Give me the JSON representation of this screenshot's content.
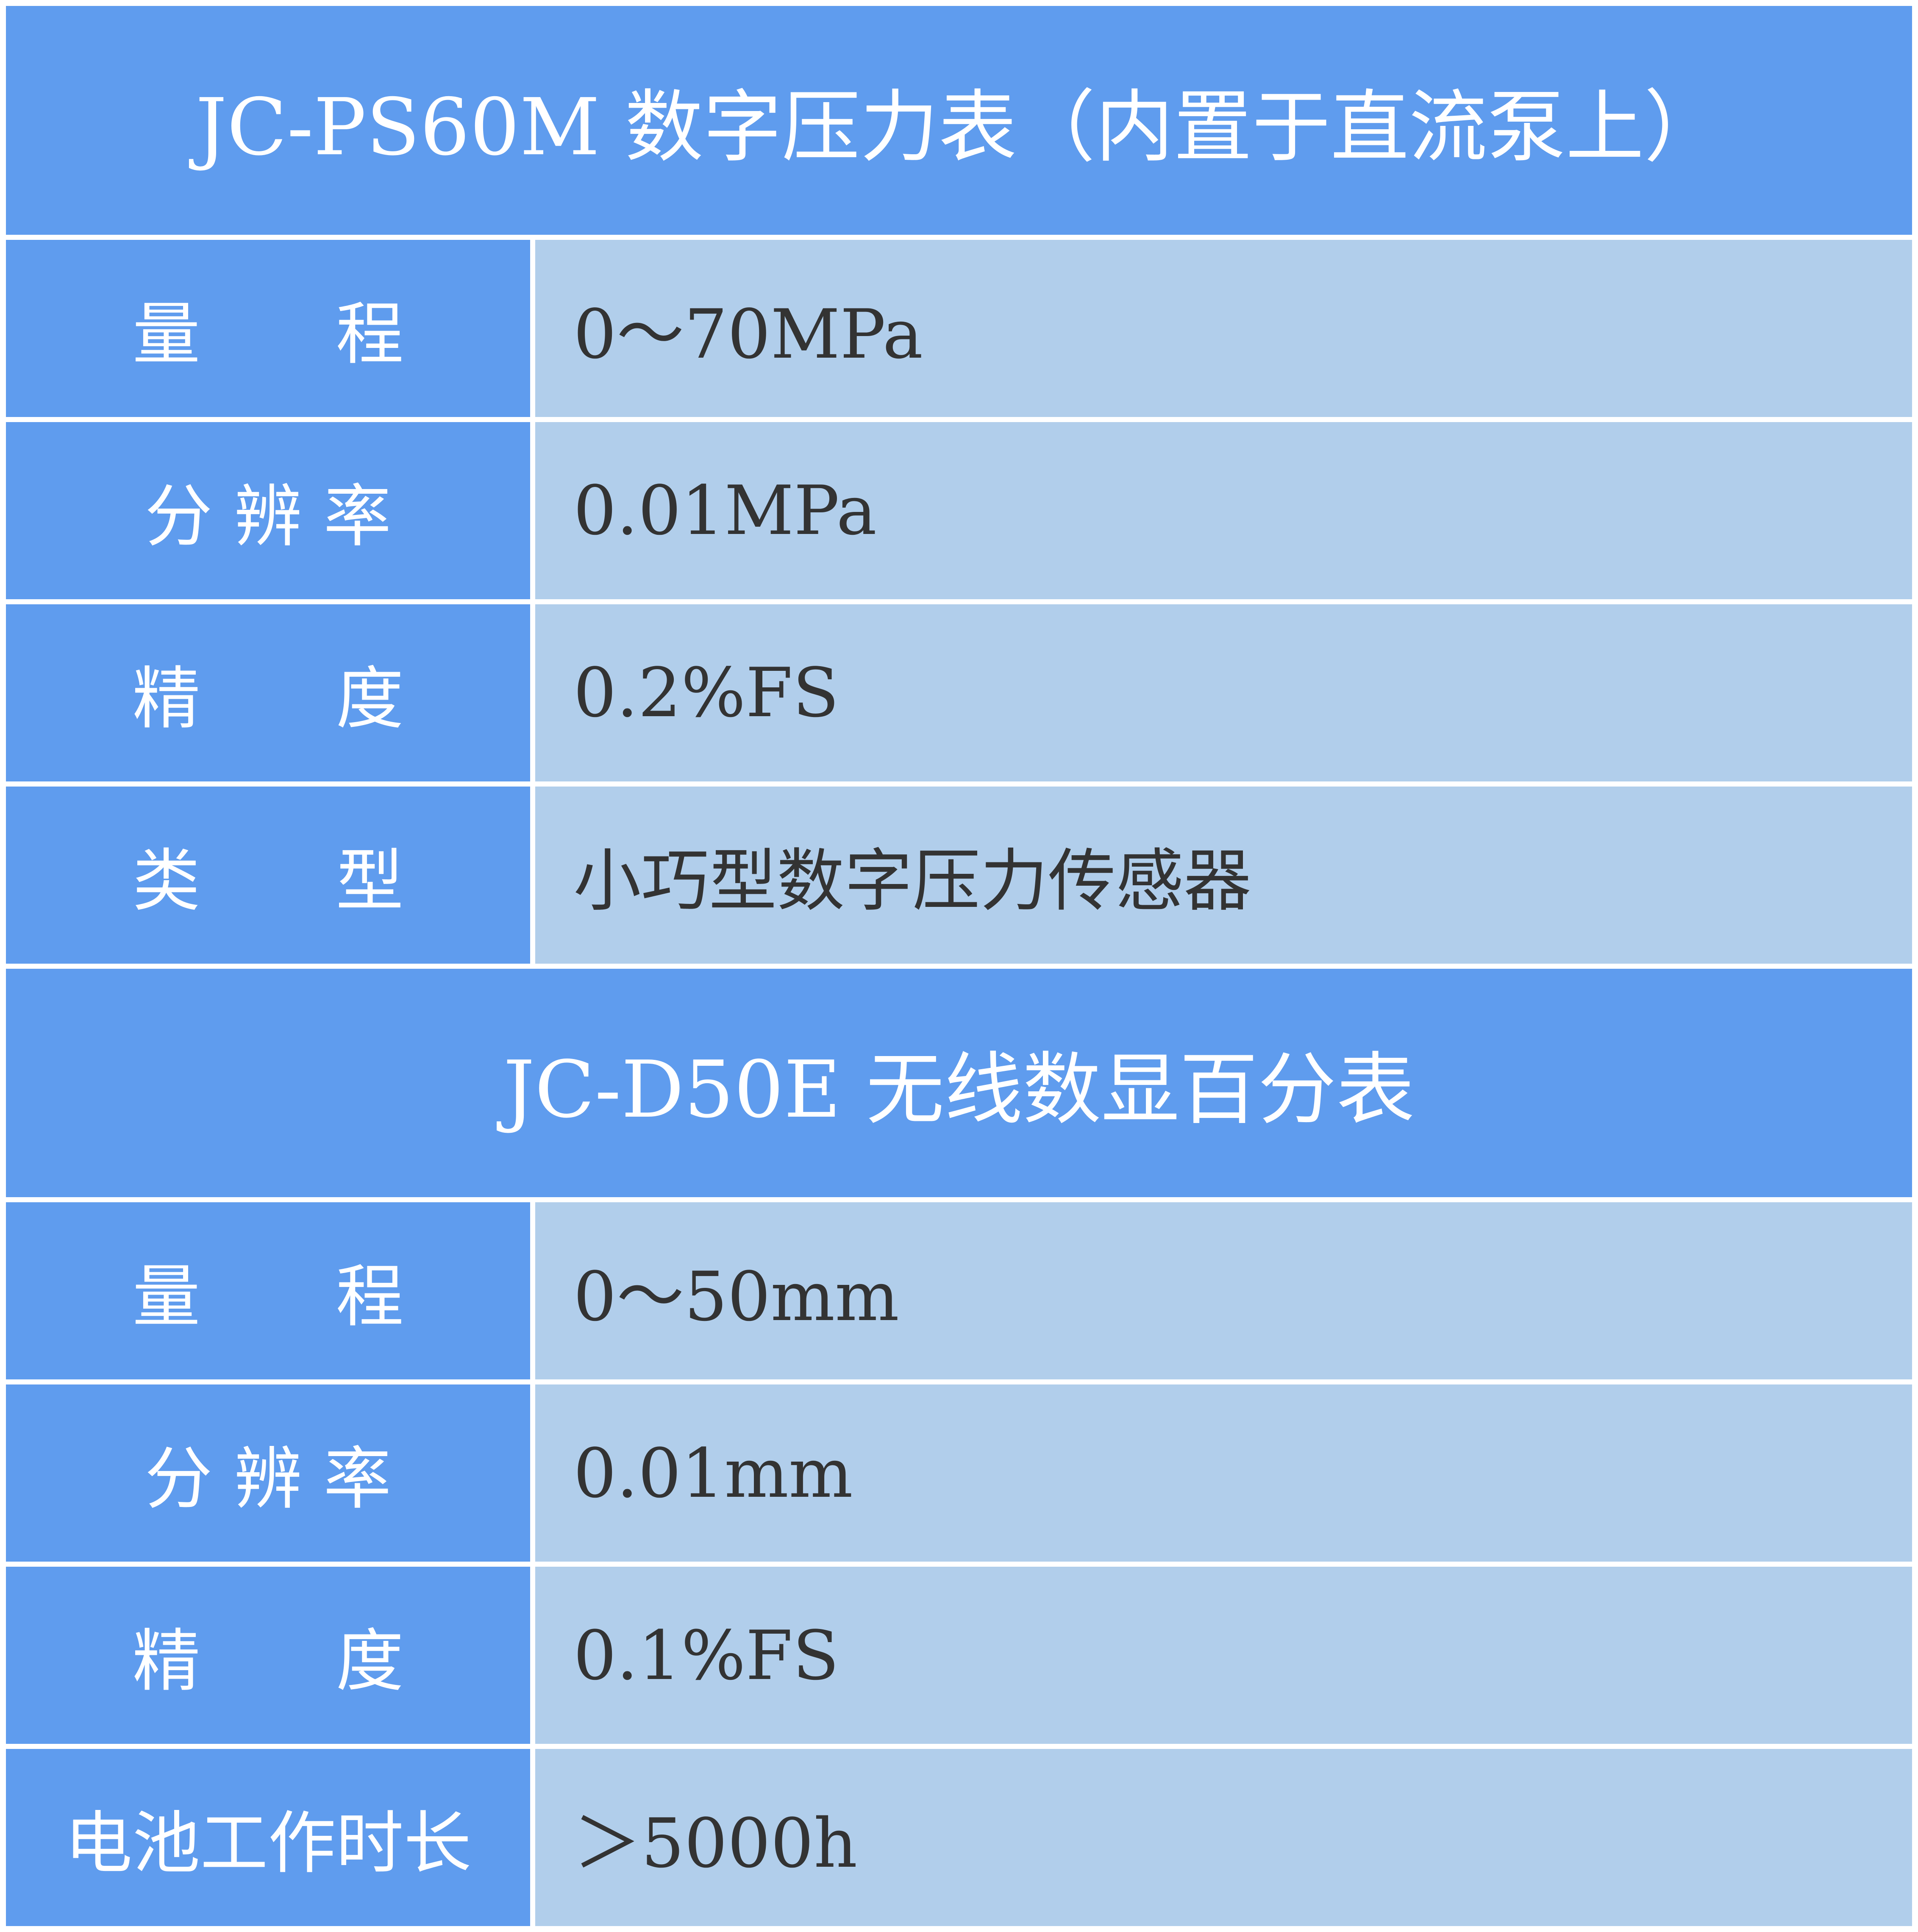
{
  "sections": [
    {
      "title": "JC-PS60M 数字压力表（内置于直流泵上）",
      "rows": [
        {
          "label": "量　　程",
          "value": "0～70MPa"
        },
        {
          "label": "分 辨 率",
          "value": "0.01MPa"
        },
        {
          "label": "精　　度",
          "value": "0.2%FS"
        },
        {
          "label": "类　　型",
          "value": "小巧型数字压力传感器"
        }
      ]
    },
    {
      "title": "JC-D50E 无线数显百分表",
      "rows": [
        {
          "label": "量　　程",
          "value": "0～50mm"
        },
        {
          "label": "分 辨 率",
          "value": "0.01mm"
        },
        {
          "label": "精　　度",
          "value": "0.1%FS"
        },
        {
          "label": "电池工作时长",
          "value": "＞5000h"
        }
      ]
    }
  ],
  "colors": {
    "header": "#5f9cee",
    "label_cell": "#5f9cee",
    "value_cell": "#b1ceeb",
    "value_text": "#333333"
  }
}
